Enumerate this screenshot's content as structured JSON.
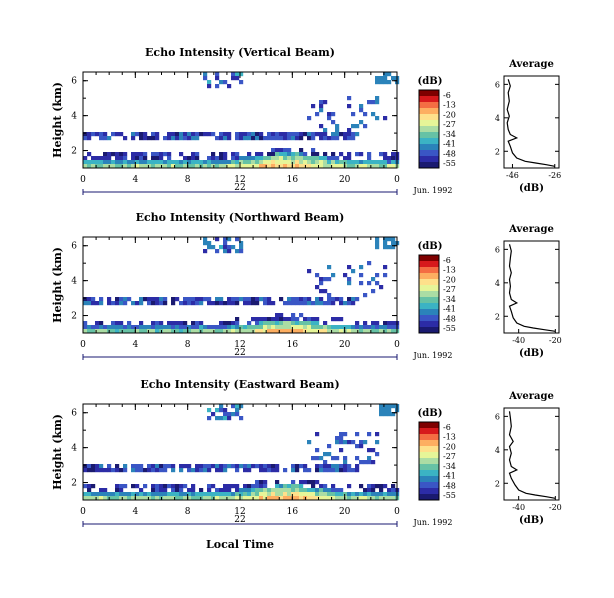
{
  "figure": {
    "xlabel": "Local Time"
  },
  "colorbar": {
    "unit": "(dB)",
    "ticks": [
      "-6",
      "-13",
      "-20",
      "-27",
      "-34",
      "-41",
      "-48",
      "-55"
    ],
    "colors": [
      "#7f0000",
      "#d7191c",
      "#f46d43",
      "#fdae61",
      "#fee08b",
      "#e6f598",
      "#abdda4",
      "#66c2a5",
      "#3bb3c4",
      "#2b83ba",
      "#3a56c5",
      "#2c2ca6",
      "#1a1a70"
    ]
  },
  "chart_data": [
    {
      "type": "heatmap",
      "title": "Echo Intensity (Vertical Beam)",
      "ylabel": "Height (km)",
      "xticks": [
        "0",
        "4",
        "8",
        "12",
        "16",
        "20",
        "0"
      ],
      "yticks": [
        "2",
        "4",
        "6"
      ],
      "xlim": [
        0,
        24
      ],
      "ylim": [
        1,
        6.5
      ],
      "date_label": "22",
      "date_right": "Jun. 1992",
      "layers": [
        {
          "from": 1.1,
          "to": 1.6,
          "level": "-20 to -34 dB",
          "hours": [
            0,
            24
          ]
        },
        {
          "from": 2.8,
          "to": 3.2,
          "level": "-41 to -48 dB",
          "hours": [
            0,
            21
          ]
        },
        {
          "from": 5.7,
          "to": 6.3,
          "level": "-41 to -48 dB",
          "hours": [
            9,
            12
          ]
        }
      ],
      "average": {
        "title": "Average",
        "xlabel": "(dB)",
        "xticks": [
          "-46",
          "-26"
        ],
        "yticks": [
          "2",
          "4",
          "6"
        ],
        "xlim": [
          -50,
          -24
        ],
        "profile": [
          {
            "h": 1.1,
            "db": -26
          },
          {
            "h": 1.2,
            "db": -30
          },
          {
            "h": 1.3,
            "db": -35
          },
          {
            "h": 1.4,
            "db": -40
          },
          {
            "h": 1.6,
            "db": -44
          },
          {
            "h": 1.9,
            "db": -46
          },
          {
            "h": 2.3,
            "db": -47
          },
          {
            "h": 2.6,
            "db": -48
          },
          {
            "h": 2.8,
            "db": -44
          },
          {
            "h": 3.0,
            "db": -47
          },
          {
            "h": 3.3,
            "db": -48
          },
          {
            "h": 3.7,
            "db": -48.5
          },
          {
            "h": 4.1,
            "db": -47.5
          },
          {
            "h": 4.5,
            "db": -48.5
          },
          {
            "h": 5.0,
            "db": -47.5
          },
          {
            "h": 5.5,
            "db": -48
          },
          {
            "h": 5.9,
            "db": -47
          },
          {
            "h": 6.3,
            "db": -48
          }
        ]
      }
    },
    {
      "type": "heatmap",
      "title": "Echo Intensity (Northward Beam)",
      "ylabel": "Height (km)",
      "xticks": [
        "0",
        "4",
        "8",
        "12",
        "16",
        "20",
        "0"
      ],
      "yticks": [
        "2",
        "4",
        "6"
      ],
      "xlim": [
        0,
        24
      ],
      "ylim": [
        1,
        6.5
      ],
      "date_label": "22",
      "date_right": "Jun. 1992",
      "layers": [
        {
          "from": 1.1,
          "to": 1.5,
          "level": "-20 to -34 dB",
          "hours": [
            0,
            24
          ]
        },
        {
          "from": 2.7,
          "to": 3.1,
          "level": "-41 to -48 dB",
          "hours": [
            0,
            21
          ]
        },
        {
          "from": 5.7,
          "to": 6.3,
          "level": "-41 to -48 dB",
          "hours": [
            9,
            12
          ]
        }
      ],
      "average": {
        "title": "Average",
        "xlabel": "(dB)",
        "xticks": [
          "-40",
          "-20"
        ],
        "yticks": [
          "2",
          "4",
          "6"
        ],
        "xlim": [
          -48,
          -18
        ],
        "profile": [
          {
            "h": 1.1,
            "db": -20
          },
          {
            "h": 1.2,
            "db": -26
          },
          {
            "h": 1.3,
            "db": -32
          },
          {
            "h": 1.4,
            "db": -37
          },
          {
            "h": 1.6,
            "db": -41
          },
          {
            "h": 1.9,
            "db": -43
          },
          {
            "h": 2.3,
            "db": -44
          },
          {
            "h": 2.6,
            "db": -45
          },
          {
            "h": 2.8,
            "db": -41
          },
          {
            "h": 3.0,
            "db": -44
          },
          {
            "h": 3.4,
            "db": -45
          },
          {
            "h": 3.8,
            "db": -44.5
          },
          {
            "h": 4.2,
            "db": -45
          },
          {
            "h": 4.6,
            "db": -44
          },
          {
            "h": 5.0,
            "db": -45
          },
          {
            "h": 5.5,
            "db": -44.5
          },
          {
            "h": 5.9,
            "db": -44
          },
          {
            "h": 6.3,
            "db": -45
          }
        ]
      }
    },
    {
      "type": "heatmap",
      "title": "Echo Intensity (Eastward Beam)",
      "ylabel": "Height (km)",
      "xticks": [
        "0",
        "4",
        "8",
        "12",
        "16",
        "20",
        "0"
      ],
      "yticks": [
        "2",
        "4",
        "6"
      ],
      "xlim": [
        0,
        24
      ],
      "ylim": [
        1,
        6.5
      ],
      "date_label": "22",
      "date_right": "Jun. 1992",
      "layers": [
        {
          "from": 1.1,
          "to": 1.6,
          "level": "-20 to -34 dB",
          "hours": [
            0,
            24
          ]
        },
        {
          "from": 2.7,
          "to": 3.1,
          "level": "-41 to -48 dB",
          "hours": [
            0,
            21
          ]
        },
        {
          "from": 5.7,
          "to": 6.3,
          "level": "-41 to -48 dB",
          "hours": [
            9,
            12
          ]
        }
      ],
      "average": {
        "title": "Average",
        "xlabel": "(dB)",
        "xticks": [
          "-40",
          "-20"
        ],
        "yticks": [
          "2",
          "4",
          "6"
        ],
        "xlim": [
          -48,
          -18
        ],
        "profile": [
          {
            "h": 1.1,
            "db": -20
          },
          {
            "h": 1.2,
            "db": -25
          },
          {
            "h": 1.3,
            "db": -31
          },
          {
            "h": 1.4,
            "db": -36
          },
          {
            "h": 1.6,
            "db": -40
          },
          {
            "h": 1.9,
            "db": -42
          },
          {
            "h": 2.3,
            "db": -44
          },
          {
            "h": 2.6,
            "db": -45
          },
          {
            "h": 2.8,
            "db": -41
          },
          {
            "h": 3.0,
            "db": -44
          },
          {
            "h": 3.4,
            "db": -45
          },
          {
            "h": 3.8,
            "db": -44
          },
          {
            "h": 4.2,
            "db": -45
          },
          {
            "h": 4.5,
            "db": -43
          },
          {
            "h": 4.9,
            "db": -45
          },
          {
            "h": 5.4,
            "db": -44
          },
          {
            "h": 5.9,
            "db": -44.5
          },
          {
            "h": 6.3,
            "db": -45
          }
        ]
      }
    }
  ]
}
